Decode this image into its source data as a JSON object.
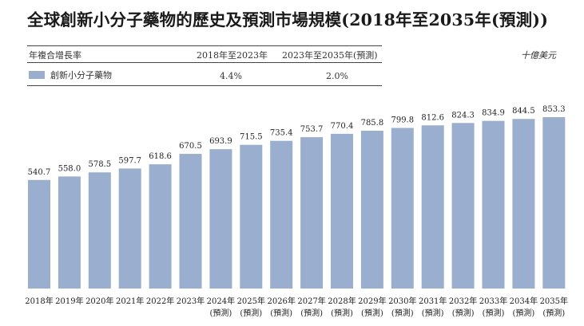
{
  "title": "全球創新小分子藥物的歷史及預測市場規模(2018年至2035年(預測))",
  "header": {
    "cagr_label": "年複合增長率",
    "period1": "2018年至2023年",
    "period2": "2023年至2035年(預測)",
    "unit": "十億美元"
  },
  "legend": {
    "series_name": "創新小分子藥物",
    "cagr1": "4.4%",
    "cagr2": "2.0%"
  },
  "colors": {
    "bar": "#9aaecf"
  },
  "chart_data": {
    "type": "bar",
    "title": "全球創新小分子藥物的歷史及預測市場規模(2018年至2035年(預測))",
    "ylabel": "十億美元",
    "xlabel": "",
    "ylim": [
      0,
      900
    ],
    "categories": [
      "2018年",
      "2019年",
      "2020年",
      "2021年",
      "2022年",
      "2023年",
      "2024年",
      "2025年",
      "2026年",
      "2027年",
      "2028年",
      "2029年",
      "2030年",
      "2031年",
      "2032年",
      "2033年",
      "2034年",
      "2035年"
    ],
    "forecast_labels": [
      "",
      "",
      "",
      "",
      "",
      "",
      "(預測)",
      "(預測)",
      "(預測)",
      "(預測)",
      "(預測)",
      "(預測)",
      "(預測)",
      "(預測)",
      "(預測)",
      "(預測)",
      "(預測)",
      "(預測)"
    ],
    "series": [
      {
        "name": "創新小分子藥物",
        "values": [
          540.7,
          558.0,
          578.5,
          597.7,
          618.6,
          670.5,
          693.9,
          715.5,
          735.4,
          753.7,
          770.4,
          785.8,
          799.8,
          812.6,
          824.3,
          834.9,
          844.5,
          853.3
        ]
      }
    ],
    "cagr": [
      {
        "period": "2018年至2023年",
        "value": "4.4%"
      },
      {
        "period": "2023年至2035年(預測)",
        "value": "2.0%"
      }
    ]
  }
}
